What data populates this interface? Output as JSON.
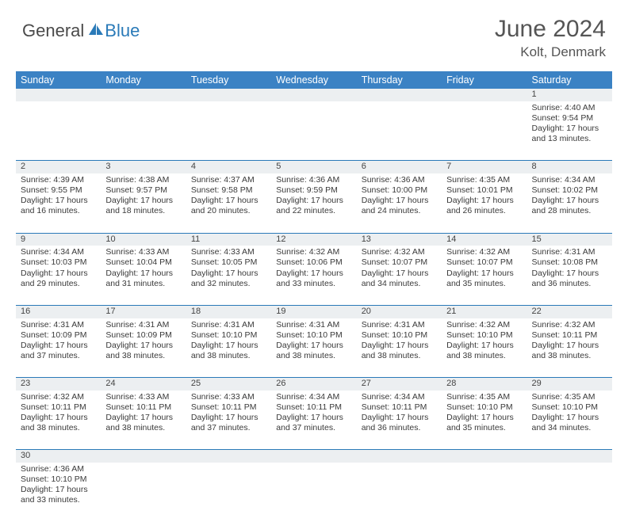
{
  "brand": {
    "part1": "General",
    "part2": "Blue"
  },
  "title": "June 2024",
  "location": "Kolt, Denmark",
  "colors": {
    "header_bg": "#3b82c4",
    "accent": "#2a7ab8",
    "daynum_bg": "#eceff1",
    "text": "#3a3a3a"
  },
  "weekdays": [
    "Sunday",
    "Monday",
    "Tuesday",
    "Wednesday",
    "Thursday",
    "Friday",
    "Saturday"
  ],
  "weeks": [
    [
      null,
      null,
      null,
      null,
      null,
      null,
      {
        "n": "1",
        "sunrise": "Sunrise: 4:40 AM",
        "sunset": "Sunset: 9:54 PM",
        "day1": "Daylight: 17 hours",
        "day2": "and 13 minutes."
      }
    ],
    [
      {
        "n": "2",
        "sunrise": "Sunrise: 4:39 AM",
        "sunset": "Sunset: 9:55 PM",
        "day1": "Daylight: 17 hours",
        "day2": "and 16 minutes."
      },
      {
        "n": "3",
        "sunrise": "Sunrise: 4:38 AM",
        "sunset": "Sunset: 9:57 PM",
        "day1": "Daylight: 17 hours",
        "day2": "and 18 minutes."
      },
      {
        "n": "4",
        "sunrise": "Sunrise: 4:37 AM",
        "sunset": "Sunset: 9:58 PM",
        "day1": "Daylight: 17 hours",
        "day2": "and 20 minutes."
      },
      {
        "n": "5",
        "sunrise": "Sunrise: 4:36 AM",
        "sunset": "Sunset: 9:59 PM",
        "day1": "Daylight: 17 hours",
        "day2": "and 22 minutes."
      },
      {
        "n": "6",
        "sunrise": "Sunrise: 4:36 AM",
        "sunset": "Sunset: 10:00 PM",
        "day1": "Daylight: 17 hours",
        "day2": "and 24 minutes."
      },
      {
        "n": "7",
        "sunrise": "Sunrise: 4:35 AM",
        "sunset": "Sunset: 10:01 PM",
        "day1": "Daylight: 17 hours",
        "day2": "and 26 minutes."
      },
      {
        "n": "8",
        "sunrise": "Sunrise: 4:34 AM",
        "sunset": "Sunset: 10:02 PM",
        "day1": "Daylight: 17 hours",
        "day2": "and 28 minutes."
      }
    ],
    [
      {
        "n": "9",
        "sunrise": "Sunrise: 4:34 AM",
        "sunset": "Sunset: 10:03 PM",
        "day1": "Daylight: 17 hours",
        "day2": "and 29 minutes."
      },
      {
        "n": "10",
        "sunrise": "Sunrise: 4:33 AM",
        "sunset": "Sunset: 10:04 PM",
        "day1": "Daylight: 17 hours",
        "day2": "and 31 minutes."
      },
      {
        "n": "11",
        "sunrise": "Sunrise: 4:33 AM",
        "sunset": "Sunset: 10:05 PM",
        "day1": "Daylight: 17 hours",
        "day2": "and 32 minutes."
      },
      {
        "n": "12",
        "sunrise": "Sunrise: 4:32 AM",
        "sunset": "Sunset: 10:06 PM",
        "day1": "Daylight: 17 hours",
        "day2": "and 33 minutes."
      },
      {
        "n": "13",
        "sunrise": "Sunrise: 4:32 AM",
        "sunset": "Sunset: 10:07 PM",
        "day1": "Daylight: 17 hours",
        "day2": "and 34 minutes."
      },
      {
        "n": "14",
        "sunrise": "Sunrise: 4:32 AM",
        "sunset": "Sunset: 10:07 PM",
        "day1": "Daylight: 17 hours",
        "day2": "and 35 minutes."
      },
      {
        "n": "15",
        "sunrise": "Sunrise: 4:31 AM",
        "sunset": "Sunset: 10:08 PM",
        "day1": "Daylight: 17 hours",
        "day2": "and 36 minutes."
      }
    ],
    [
      {
        "n": "16",
        "sunrise": "Sunrise: 4:31 AM",
        "sunset": "Sunset: 10:09 PM",
        "day1": "Daylight: 17 hours",
        "day2": "and 37 minutes."
      },
      {
        "n": "17",
        "sunrise": "Sunrise: 4:31 AM",
        "sunset": "Sunset: 10:09 PM",
        "day1": "Daylight: 17 hours",
        "day2": "and 38 minutes."
      },
      {
        "n": "18",
        "sunrise": "Sunrise: 4:31 AM",
        "sunset": "Sunset: 10:10 PM",
        "day1": "Daylight: 17 hours",
        "day2": "and 38 minutes."
      },
      {
        "n": "19",
        "sunrise": "Sunrise: 4:31 AM",
        "sunset": "Sunset: 10:10 PM",
        "day1": "Daylight: 17 hours",
        "day2": "and 38 minutes."
      },
      {
        "n": "20",
        "sunrise": "Sunrise: 4:31 AM",
        "sunset": "Sunset: 10:10 PM",
        "day1": "Daylight: 17 hours",
        "day2": "and 38 minutes."
      },
      {
        "n": "21",
        "sunrise": "Sunrise: 4:32 AM",
        "sunset": "Sunset: 10:10 PM",
        "day1": "Daylight: 17 hours",
        "day2": "and 38 minutes."
      },
      {
        "n": "22",
        "sunrise": "Sunrise: 4:32 AM",
        "sunset": "Sunset: 10:11 PM",
        "day1": "Daylight: 17 hours",
        "day2": "and 38 minutes."
      }
    ],
    [
      {
        "n": "23",
        "sunrise": "Sunrise: 4:32 AM",
        "sunset": "Sunset: 10:11 PM",
        "day1": "Daylight: 17 hours",
        "day2": "and 38 minutes."
      },
      {
        "n": "24",
        "sunrise": "Sunrise: 4:33 AM",
        "sunset": "Sunset: 10:11 PM",
        "day1": "Daylight: 17 hours",
        "day2": "and 38 minutes."
      },
      {
        "n": "25",
        "sunrise": "Sunrise: 4:33 AM",
        "sunset": "Sunset: 10:11 PM",
        "day1": "Daylight: 17 hours",
        "day2": "and 37 minutes."
      },
      {
        "n": "26",
        "sunrise": "Sunrise: 4:34 AM",
        "sunset": "Sunset: 10:11 PM",
        "day1": "Daylight: 17 hours",
        "day2": "and 37 minutes."
      },
      {
        "n": "27",
        "sunrise": "Sunrise: 4:34 AM",
        "sunset": "Sunset: 10:11 PM",
        "day1": "Daylight: 17 hours",
        "day2": "and 36 minutes."
      },
      {
        "n": "28",
        "sunrise": "Sunrise: 4:35 AM",
        "sunset": "Sunset: 10:10 PM",
        "day1": "Daylight: 17 hours",
        "day2": "and 35 minutes."
      },
      {
        "n": "29",
        "sunrise": "Sunrise: 4:35 AM",
        "sunset": "Sunset: 10:10 PM",
        "day1": "Daylight: 17 hours",
        "day2": "and 34 minutes."
      }
    ],
    [
      {
        "n": "30",
        "sunrise": "Sunrise: 4:36 AM",
        "sunset": "Sunset: 10:10 PM",
        "day1": "Daylight: 17 hours",
        "day2": "and 33 minutes."
      },
      null,
      null,
      null,
      null,
      null,
      null
    ]
  ]
}
